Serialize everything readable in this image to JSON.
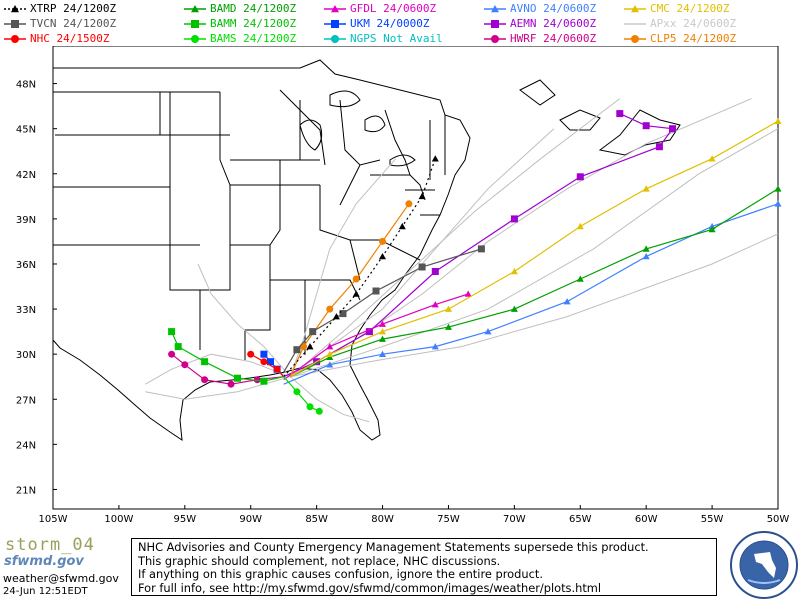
{
  "legend": [
    {
      "name": "XTRP",
      "time": "24/1200Z",
      "color": "#000000",
      "marker": "triangle",
      "dash": true
    },
    {
      "name": "TVCN",
      "time": "24/1200Z",
      "color": "#555555",
      "marker": "square"
    },
    {
      "name": "NHC",
      "time": "24/1500Z",
      "color": "#ff0000",
      "marker": "circle"
    },
    {
      "name": "BAMD",
      "time": "24/1200Z",
      "color": "#00a000",
      "marker": "triangle"
    },
    {
      "name": "BAMM",
      "time": "24/1200Z",
      "color": "#00c000",
      "marker": "square"
    },
    {
      "name": "BAMS",
      "time": "24/1200Z",
      "color": "#00e000",
      "marker": "circle"
    },
    {
      "name": "GFDL",
      "time": "24/0600Z",
      "color": "#e000c0",
      "marker": "triangle"
    },
    {
      "name": "UKM",
      "time": "24/0000Z",
      "color": "#0040ff",
      "marker": "square"
    },
    {
      "name": "NGPS",
      "time": "Not Avail",
      "color": "#00c0c0",
      "marker": "circle"
    },
    {
      "name": "AVNO",
      "time": "24/0600Z",
      "color": "#4080ff",
      "marker": "triangle"
    },
    {
      "name": "AEMN",
      "time": "24/0600Z",
      "color": "#a000d0",
      "marker": "square"
    },
    {
      "name": "HWRF",
      "time": "24/0600Z",
      "color": "#d0008a",
      "marker": "circle"
    },
    {
      "name": "CMC",
      "time": "24/1200Z",
      "color": "#e0c000",
      "marker": "triangle"
    },
    {
      "name": "APxx",
      "time": "24/0600Z",
      "color": "#c8c8c8",
      "marker": "none"
    },
    {
      "name": "CLP5",
      "time": "24/1200Z",
      "color": "#f08000",
      "marker": "circle"
    }
  ],
  "axes": {
    "lon_labels": [
      "105W",
      "100W",
      "95W",
      "90W",
      "85W",
      "80W",
      "75W",
      "70W",
      "65W",
      "60W",
      "55W",
      "50W"
    ],
    "lat_labels": [
      "48N",
      "45N",
      "42N",
      "39N",
      "36N",
      "33N",
      "30N",
      "27N",
      "24N",
      "21N"
    ]
  },
  "branding": {
    "storm": "storm_04",
    "logo": "sfwmd.gov",
    "email": "weather@sfwmd.gov",
    "timestamp": "24-Jun 12:51EDT"
  },
  "notice": [
    "NHC Advisories and County Emergency Management Statements supersede this product.",
    "This graphic should complement, not replace, NHC discussions.",
    "If anything on this graphic causes confusion, ignore the entire product.",
    "For full info, see  http://my.sfwmd.gov/sfwmd/common/images/weather/plots.html"
  ],
  "tracks": [
    {
      "model": "AEMN",
      "color": "#a000d0",
      "marker": "square",
      "points": [
        [
          -87.5,
          28.5
        ],
        [
          -85,
          29.5
        ],
        [
          -81,
          31.5
        ],
        [
          -76,
          35.5
        ],
        [
          -70,
          39
        ],
        [
          -65,
          41.8
        ],
        [
          -59,
          43.8
        ],
        [
          -58,
          45
        ],
        [
          -60,
          45.2
        ],
        [
          -62,
          46
        ]
      ]
    },
    {
      "model": "GFDL",
      "color": "#e000c0",
      "marker": "triangle",
      "points": [
        [
          -87.5,
          28.3
        ],
        [
          -84,
          30.5
        ],
        [
          -80,
          32
        ],
        [
          -76,
          33.3
        ],
        [
          -73.5,
          34
        ]
      ]
    },
    {
      "model": "AVNO",
      "color": "#4080ff",
      "marker": "triangle",
      "points": [
        [
          -87.5,
          28
        ],
        [
          -84,
          29.3
        ],
        [
          -80,
          30
        ],
        [
          -76,
          30.5
        ],
        [
          -72,
          31.5
        ],
        [
          -66,
          33.5
        ],
        [
          -60,
          36.5
        ],
        [
          -55,
          38.5
        ],
        [
          -50,
          40
        ]
      ]
    },
    {
      "model": "BAMD",
      "color": "#00a000",
      "marker": "triangle",
      "points": [
        [
          -87,
          28.5
        ],
        [
          -84,
          29.8
        ],
        [
          -80,
          31
        ],
        [
          -75,
          31.8
        ],
        [
          -70,
          33
        ],
        [
          -65,
          35
        ],
        [
          -60,
          37
        ],
        [
          -55,
          38.3
        ],
        [
          -50,
          41
        ]
      ]
    },
    {
      "model": "CMC",
      "color": "#e0c000",
      "marker": "triangle",
      "points": [
        [
          -87,
          28.5
        ],
        [
          -84,
          30
        ],
        [
          -80,
          31.5
        ],
        [
          -75,
          33
        ],
        [
          -70,
          35.5
        ],
        [
          -65,
          38.5
        ],
        [
          -60,
          41
        ],
        [
          -55,
          43
        ],
        [
          -50,
          45.5
        ]
      ]
    },
    {
      "model": "CLP5",
      "color": "#f08000",
      "marker": "circle",
      "points": [
        [
          -87,
          28.5
        ],
        [
          -86,
          30.5
        ],
        [
          -84,
          33
        ],
        [
          -82,
          35
        ],
        [
          -80,
          37.5
        ],
        [
          -78,
          40
        ]
      ]
    },
    {
      "model": "TVCN",
      "color": "#555555",
      "marker": "square",
      "points": [
        [
          -87.5,
          28.8
        ],
        [
          -86.5,
          30.3
        ],
        [
          -85.3,
          31.5
        ],
        [
          -83,
          32.7
        ],
        [
          -80.5,
          34.2
        ],
        [
          -77,
          35.8
        ],
        [
          -72.5,
          37
        ]
      ]
    },
    {
      "model": "XTRP",
      "color": "#000000",
      "marker": "triangle",
      "dash": true,
      "points": [
        [
          -87.5,
          28.5
        ],
        [
          -85.5,
          30.5
        ],
        [
          -83.5,
          32.5
        ],
        [
          -82,
          34
        ],
        [
          -80,
          36.5
        ],
        [
          -78.5,
          38.5
        ],
        [
          -77,
          40.5
        ],
        [
          -76,
          43
        ]
      ]
    },
    {
      "model": "HWRF",
      "color": "#d0008a",
      "marker": "circle",
      "points": [
        [
          -87.5,
          28.5
        ],
        [
          -89.5,
          28.3
        ],
        [
          -91.5,
          28
        ],
        [
          -93.5,
          28.3
        ],
        [
          -95,
          29.3
        ],
        [
          -96,
          30
        ]
      ]
    },
    {
      "model": "BAMM",
      "color": "#00c000",
      "marker": "square",
      "points": [
        [
          -87.5,
          28.5
        ],
        [
          -89,
          28.2
        ],
        [
          -91,
          28.4
        ],
        [
          -93.5,
          29.5
        ],
        [
          -95.5,
          30.5
        ],
        [
          -96,
          31.5
        ]
      ]
    },
    {
      "model": "BAMS",
      "color": "#00e000",
      "marker": "circle",
      "points": [
        [
          -87.5,
          28.5
        ],
        [
          -86.5,
          27.5
        ],
        [
          -85.5,
          26.5
        ],
        [
          -84.8,
          26.2
        ]
      ]
    },
    {
      "model": "UKM",
      "color": "#0040ff",
      "marker": "square",
      "points": [
        [
          -87.5,
          28.5
        ],
        [
          -88,
          29
        ],
        [
          -88.5,
          29.5
        ],
        [
          -89,
          30
        ]
      ]
    },
    {
      "model": "NHC",
      "color": "#ff0000",
      "marker": "circle",
      "points": [
        [
          -87.5,
          28.5
        ],
        [
          -88,
          29
        ],
        [
          -89,
          29.5
        ],
        [
          -90,
          30
        ]
      ]
    }
  ]
}
